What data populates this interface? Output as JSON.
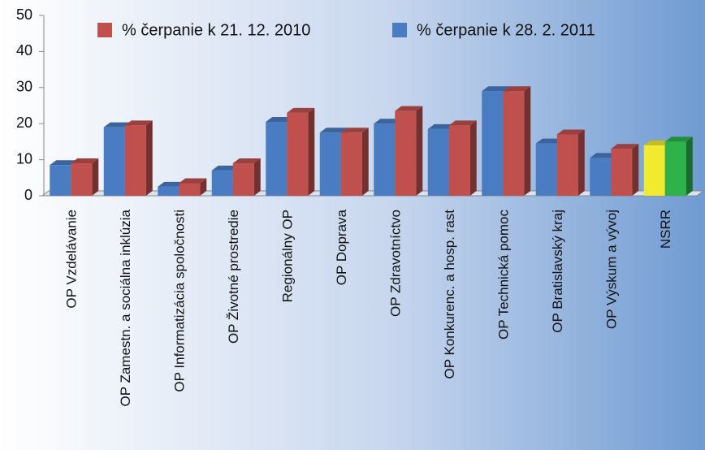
{
  "chart_data": {
    "type": "bar3d",
    "categories": [
      "OP Vzdelávanie",
      "OP Zamestn. a sociálna inklúzia",
      "OP Informatizácia spoločnosti",
      "OP Životné prostredie",
      "Regionálny OP",
      "OP Doprava",
      "OP Zdravotníctvo",
      "OP Konkurenc. a hosp. rast",
      "OP Technická pomoc",
      "OP Bratislavský kraj",
      "OP Výskum a vývoj",
      "NSRR"
    ],
    "series": [
      {
        "name": "% čerpanie k 28. 2. 2011",
        "color": "#4a7cc4",
        "colors": [
          "#4a7cc4",
          "#4a7cc4",
          "#4a7cc4",
          "#4a7cc4",
          "#4a7cc4",
          "#4a7cc4",
          "#4a7cc4",
          "#4a7cc4",
          "#4a7cc4",
          "#4a7cc4",
          "#4a7cc4",
          "#f2ea2e"
        ],
        "values": [
          8.5,
          19,
          2.5,
          7,
          20.5,
          17.5,
          20,
          18.5,
          29,
          14.5,
          10.5,
          14
        ]
      },
      {
        "name": "% čerpanie k 21. 12. 2010",
        "color": "#c0504d",
        "colors": [
          "#c0504d",
          "#c0504d",
          "#c0504d",
          "#c0504d",
          "#c0504d",
          "#c0504d",
          "#c0504d",
          "#c0504d",
          "#c0504d",
          "#c0504d",
          "#c0504d",
          "#2db34a"
        ],
        "values": [
          9,
          19.5,
          3.5,
          9,
          23,
          17.5,
          23.5,
          19.5,
          29,
          17,
          13,
          15
        ]
      }
    ],
    "legend_order": [
      1,
      0
    ],
    "ylim": [
      0,
      50
    ],
    "yticks": [
      0,
      10,
      20,
      30,
      40,
      50
    ]
  }
}
